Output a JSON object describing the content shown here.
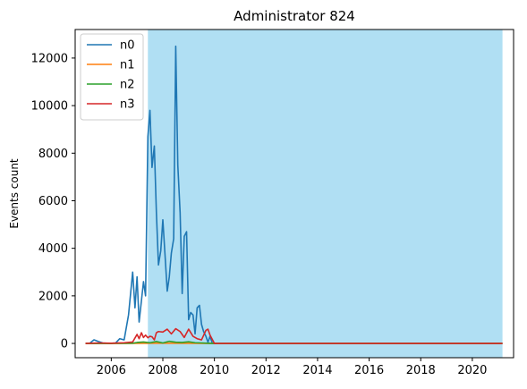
{
  "chart_data": {
    "type": "line",
    "title": "Administrator 824",
    "xlabel": "",
    "ylabel": "Events count",
    "xlim": [
      2004.6,
      2021.6
    ],
    "ylim": [
      -600,
      13200
    ],
    "xticks": [
      2006,
      2008,
      2010,
      2012,
      2014,
      2016,
      2018,
      2020
    ],
    "yticks": [
      0,
      2000,
      4000,
      6000,
      8000,
      10000,
      12000
    ],
    "grid": false,
    "legend_position": "top-left",
    "shaded_span": {
      "x_start": 2007.42,
      "x_end": 2021.17,
      "color": "#b0dff3"
    },
    "series": [
      {
        "name": "n0",
        "color": "#1f77b4",
        "x": [
          2005.0,
          2005.17,
          2005.33,
          2005.5,
          2005.67,
          2005.83,
          2006.0,
          2006.17,
          2006.33,
          2006.5,
          2006.67,
          2006.83,
          2006.92,
          2007.0,
          2007.08,
          2007.17,
          2007.25,
          2007.33,
          2007.42,
          2007.5,
          2007.58,
          2007.67,
          2007.75,
          2007.83,
          2007.92,
          2008.0,
          2008.08,
          2008.17,
          2008.25,
          2008.33,
          2008.42,
          2008.5,
          2008.58,
          2008.67,
          2008.75,
          2008.83,
          2008.92,
          2009.0,
          2009.08,
          2009.17,
          2009.25,
          2009.33,
          2009.42,
          2009.5,
          2009.58,
          2009.67,
          2009.75,
          2009.83,
          2009.92,
          2010.0,
          2010.08,
          2010.17,
          2010.5,
          2011.0,
          2012.0,
          2014.0,
          2016.0,
          2018.0,
          2020.0,
          2021.17
        ],
        "values": [
          0,
          10,
          150,
          80,
          20,
          10,
          5,
          20,
          200,
          150,
          1200,
          3000,
          1500,
          2800,
          900,
          1800,
          2600,
          2000,
          8700,
          9800,
          7400,
          8300,
          5500,
          3300,
          3900,
          5200,
          3800,
          2200,
          2800,
          3800,
          4400,
          12500,
          7500,
          5500,
          2100,
          4500,
          4700,
          1000,
          1300,
          1200,
          400,
          1500,
          1600,
          800,
          500,
          300,
          50,
          300,
          0,
          0,
          0,
          0,
          0,
          0,
          0,
          0,
          0,
          0,
          0,
          0
        ]
      },
      {
        "name": "n1",
        "color": "#ff7f0e",
        "x": [
          2005.0,
          2006.0,
          2007.0,
          2008.0,
          2009.0,
          2010.0,
          2012.0,
          2016.0,
          2021.17
        ],
        "values": [
          0,
          0,
          5,
          10,
          5,
          0,
          0,
          0,
          0
        ]
      },
      {
        "name": "n2",
        "color": "#2ca02c",
        "x": [
          2005.0,
          2006.0,
          2006.83,
          2007.0,
          2007.25,
          2007.5,
          2007.75,
          2008.0,
          2008.25,
          2008.5,
          2008.75,
          2009.0,
          2009.25,
          2009.5,
          2009.75,
          2010.0,
          2010.25,
          2012.0,
          2016.0,
          2021.17
        ],
        "values": [
          0,
          0,
          10,
          40,
          60,
          30,
          80,
          20,
          90,
          50,
          40,
          70,
          30,
          20,
          10,
          0,
          0,
          0,
          0,
          0
        ]
      },
      {
        "name": "n3",
        "color": "#d62728",
        "x": [
          2005.0,
          2005.5,
          2006.0,
          2006.5,
          2006.83,
          2007.0,
          2007.08,
          2007.17,
          2007.25,
          2007.33,
          2007.42,
          2007.5,
          2007.58,
          2007.67,
          2007.75,
          2007.83,
          2008.0,
          2008.17,
          2008.33,
          2008.5,
          2008.67,
          2008.83,
          2009.0,
          2009.17,
          2009.33,
          2009.5,
          2009.67,
          2009.75,
          2009.83,
          2010.0,
          2010.17,
          2010.5,
          2011.0,
          2012.0,
          2016.0,
          2021.17
        ],
        "values": [
          0,
          20,
          10,
          30,
          60,
          380,
          200,
          450,
          250,
          350,
          240,
          300,
          280,
          150,
          450,
          500,
          480,
          600,
          400,
          620,
          500,
          250,
          600,
          300,
          200,
          150,
          550,
          600,
          350,
          0,
          0,
          0,
          0,
          0,
          0,
          0
        ]
      }
    ]
  }
}
